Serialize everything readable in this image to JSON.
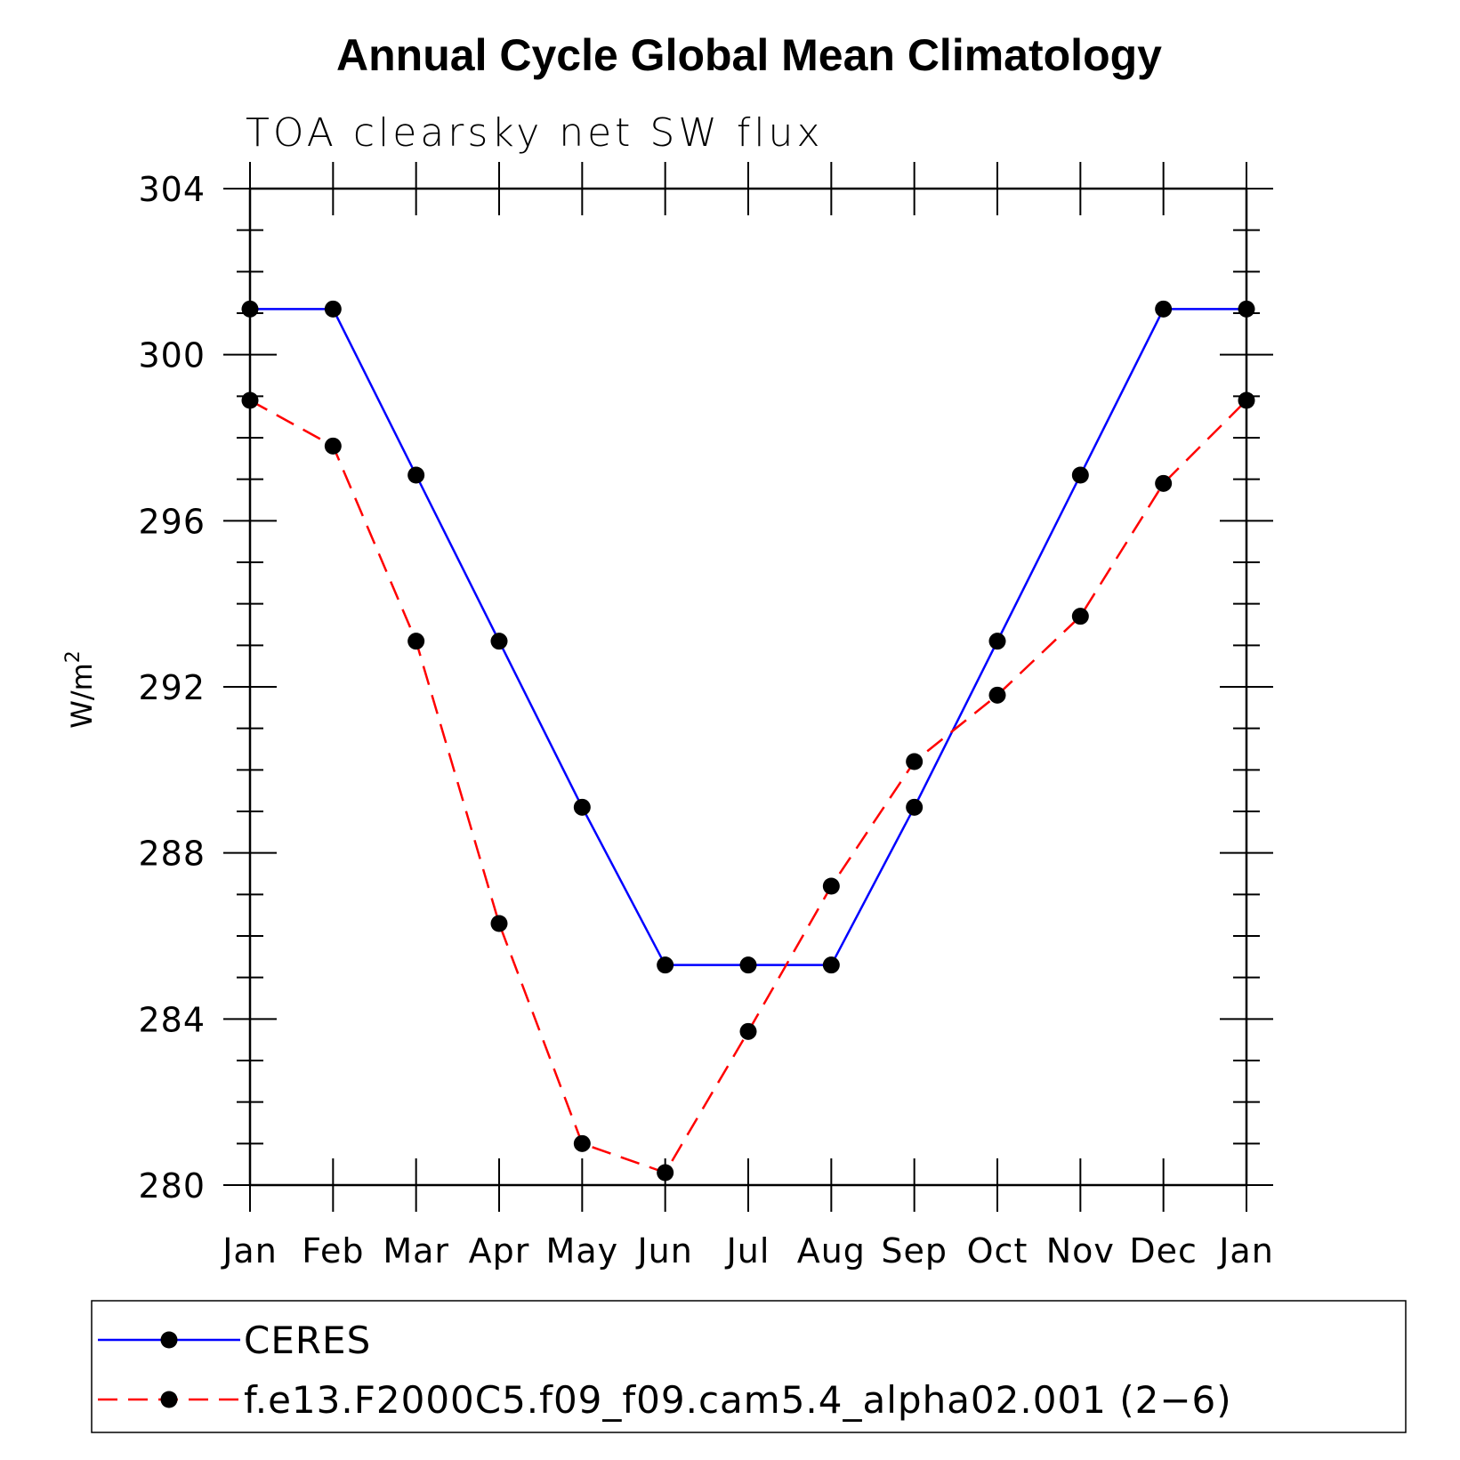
{
  "chart_data": {
    "type": "line",
    "title": "Annual Cycle Global Mean Climatology",
    "subtitle": "TOA clearsky net SW flux",
    "ylabel": "W/m",
    "ylabel_superscript": "2",
    "xlabel": "",
    "categories": [
      "Jan",
      "Feb",
      "Mar",
      "Apr",
      "May",
      "Jun",
      "Jul",
      "Aug",
      "Sep",
      "Oct",
      "Nov",
      "Dec",
      "Jan"
    ],
    "ylim": [
      280,
      304
    ],
    "yticks": [
      280,
      284,
      288,
      292,
      296,
      300,
      304
    ],
    "y_minor_step": 1,
    "legend_position": "bottom",
    "series": [
      {
        "name": "CERES",
        "color": "#0000ff",
        "dash": "solid",
        "values": [
          301.1,
          301.1,
          297.1,
          293.1,
          289.1,
          285.3,
          285.3,
          285.3,
          289.1,
          293.1,
          297.1,
          301.1,
          301.1
        ]
      },
      {
        "name": "f.e13.F2000C5.f09_f09.cam5.4_alpha02.001 (2−6)",
        "color": "#ff0000",
        "dash": "dashed",
        "values": [
          298.9,
          297.8,
          293.1,
          286.3,
          281.0,
          280.3,
          283.7,
          287.2,
          290.2,
          291.8,
          293.7,
          296.9,
          298.9
        ]
      }
    ]
  }
}
